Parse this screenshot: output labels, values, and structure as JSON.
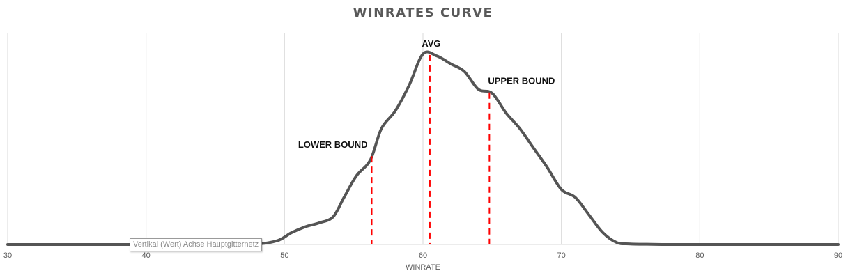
{
  "chart_data": {
    "type": "line",
    "title": "WINRATES CURVE",
    "xlabel": "WINRATE",
    "ylabel": "",
    "xlim": [
      30,
      90
    ],
    "xticks": [
      "30",
      "40",
      "50",
      "60",
      "70",
      "80",
      "90"
    ],
    "grid": "vertical",
    "series": [
      {
        "color": "#555555",
        "x": [
          30,
          40,
          45,
          48,
          49.5,
          50.5,
          51.5,
          52.5,
          53.5,
          54.3,
          55.2,
          56.2,
          57,
          58,
          59,
          60,
          61,
          62,
          63,
          64,
          65,
          66,
          67,
          68,
          69,
          70,
          71,
          72,
          73,
          74,
          75,
          76.5,
          78,
          80,
          85,
          90
        ],
        "y": [
          0,
          0,
          0,
          0.003,
          0.02,
          0.06,
          0.09,
          0.11,
          0.14,
          0.24,
          0.35,
          0.43,
          0.59,
          0.68,
          0.81,
          0.97,
          0.96,
          0.92,
          0.88,
          0.79,
          0.77,
          0.67,
          0.59,
          0.49,
          0.39,
          0.28,
          0.24,
          0.15,
          0.06,
          0.01,
          0.003,
          0.001,
          0,
          0,
          0,
          0
        ]
      }
    ],
    "markers": [
      {
        "label": "LOWER BOUND",
        "x": 56.3,
        "color": "#ff0000"
      },
      {
        "label": "AVG",
        "x": 60.5,
        "color": "#ff0000"
      },
      {
        "label": "UPPER BOUND",
        "x": 64.8,
        "color": "#ff0000"
      }
    ]
  },
  "tooltip": "Vertikal (Wert) Achse Hauptgitternetz"
}
